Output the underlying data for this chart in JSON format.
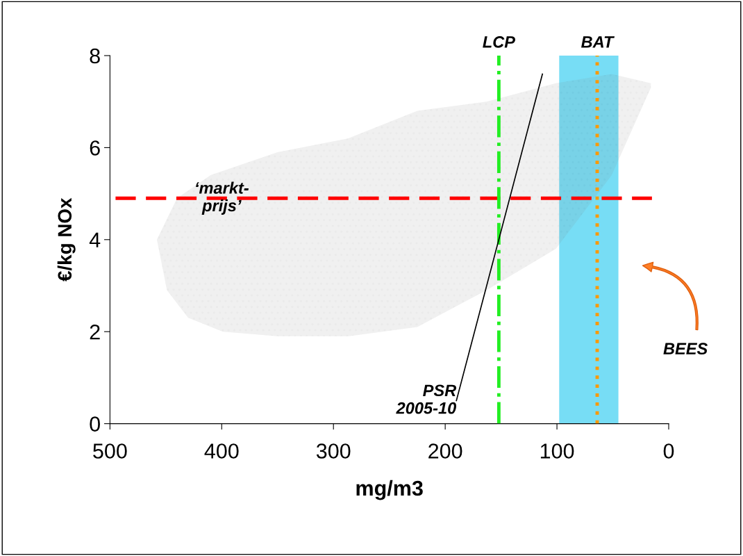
{
  "chart_data": {
    "type": "line",
    "xlabel": "mg/m3",
    "ylabel": "€/kg NOx",
    "xlim": [
      500,
      0
    ],
    "ylim": [
      0,
      8
    ],
    "xticks": [
      500,
      400,
      300,
      200,
      100,
      0
    ],
    "yticks": [
      0,
      2,
      4,
      6,
      8
    ],
    "grid": false,
    "legend": false,
    "series": [
      {
        "type": "area",
        "color": "#555555",
        "x": [
          458,
          440,
          410,
          350,
          287,
          225,
          163,
          101,
          51,
          16,
          16,
          51,
          101,
          163,
          225,
          287,
          350,
          399,
          430,
          449,
          458
        ],
        "values": [
          4.0,
          4.9,
          5.4,
          5.9,
          6.2,
          6.8,
          7.0,
          7.4,
          7.6,
          7.4,
          7.3,
          5.4,
          3.8,
          2.9,
          2.1,
          1.9,
          1.9,
          2.0,
          2.3,
          2.9,
          4.0
        ]
      },
      {
        "name": "PSR\n2005-10",
        "color": "#000000",
        "x": [
          190,
          113
        ],
        "values": [
          0.5,
          7.6
        ]
      }
    ],
    "ref_lines": [
      {
        "axis": "y",
        "value": 4.9,
        "label": "‘markt-\nprijs’",
        "color": "#ff0000",
        "line_style": "dashed"
      },
      {
        "axis": "x",
        "value": 152,
        "label": "LCP",
        "color": "#22ee22",
        "line_style": "dashdot"
      },
      {
        "axis": "x",
        "value": 64,
        "label": "BAT",
        "color": "#ff9900",
        "line_style": "dotted"
      }
    ],
    "bands": [
      {
        "axis": "x",
        "from": 98,
        "to": 45,
        "color": "#77ddf5"
      }
    ],
    "annotations": [
      "BEES"
    ]
  }
}
